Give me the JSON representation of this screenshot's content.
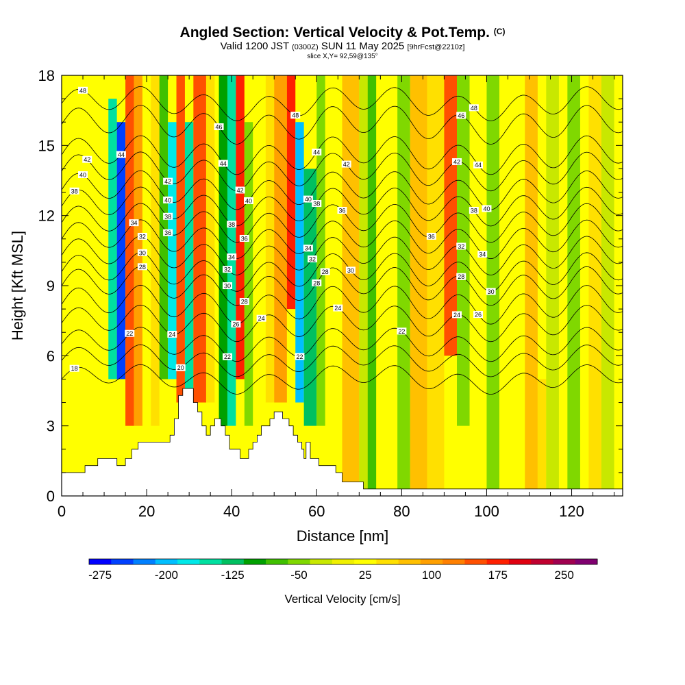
{
  "header": {
    "title": "Angled Section: Vertical Velocity & Pot.Temp.",
    "title_tag": "(C)",
    "valid_prefix": "Valid 1200 JST",
    "valid_utc": "(0300Z)",
    "valid_date": "SUN 11 May 2025",
    "forecast": "[9hrFcst@2210z]",
    "slice": "slice X,Y= 92,59@135°"
  },
  "chart_data": {
    "type": "heatmap",
    "xlabel": "Distance [nm]",
    "ylabel": "Height [Kft MSL]",
    "xlim": [
      0,
      132
    ],
    "ylim": [
      0,
      18
    ],
    "x_ticks": [
      0,
      20,
      40,
      60,
      80,
      100,
      120
    ],
    "y_ticks": [
      0,
      3,
      6,
      9,
      12,
      15,
      18
    ],
    "colorbar": {
      "title": "Vertical Velocity [cm/s]",
      "min": -287.5,
      "max": 287.5,
      "step": 25,
      "tick_values": [
        -275,
        -200,
        -125,
        -50,
        25,
        100,
        175,
        250
      ],
      "tick_labels": [
        "-275",
        "-200",
        "-125",
        "-50",
        "25",
        "100",
        "175",
        "250"
      ],
      "colors": [
        "#0000ff",
        "#0040ff",
        "#0080ff",
        "#00bfff",
        "#00e8e8",
        "#00e0a0",
        "#00c060",
        "#00a000",
        "#40c000",
        "#80d800",
        "#c8e800",
        "#f0f000",
        "#ffff00",
        "#ffe000",
        "#ffc000",
        "#ffa000",
        "#ff8000",
        "#ff5000",
        "#ff2000",
        "#e00010",
        "#c00030",
        "#a00050",
        "#800070"
      ]
    },
    "vertical_velocity_cells": [
      {
        "x": [
          9,
          11
        ],
        "y": [
          3,
          18
        ],
        "value": 25
      },
      {
        "x": [
          11,
          13
        ],
        "y": [
          5,
          17
        ],
        "value": -150
      },
      {
        "x": [
          13,
          15
        ],
        "y": [
          5,
          16
        ],
        "value": -250
      },
      {
        "x": [
          15,
          17
        ],
        "y": [
          3,
          18
        ],
        "value": 160
      },
      {
        "x": [
          17,
          19
        ],
        "y": [
          3,
          18
        ],
        "value": 100
      },
      {
        "x": [
          21,
          23
        ],
        "y": [
          3,
          18
        ],
        "value": 50
      },
      {
        "x": [
          23,
          25
        ],
        "y": [
          5,
          18
        ],
        "value": -75
      },
      {
        "x": [
          25,
          27
        ],
        "y": [
          5,
          16
        ],
        "value": -175
      },
      {
        "x": [
          27,
          29
        ],
        "y": [
          4,
          18
        ],
        "value": 160
      },
      {
        "x": [
          29,
          31
        ],
        "y": [
          4,
          16
        ],
        "value": -150
      },
      {
        "x": [
          31,
          34
        ],
        "y": [
          4,
          18
        ],
        "value": 150
      },
      {
        "x": [
          34,
          36
        ],
        "y": [
          4,
          18
        ],
        "value": 60
      },
      {
        "x": [
          37,
          39
        ],
        "y": [
          3,
          18
        ],
        "value": -100
      },
      {
        "x": [
          39,
          41
        ],
        "y": [
          3,
          18
        ],
        "value": -150
      },
      {
        "x": [
          41,
          43
        ],
        "y": [
          5,
          18
        ],
        "value": 175
      },
      {
        "x": [
          43,
          45
        ],
        "y": [
          3,
          16
        ],
        "value": -50
      },
      {
        "x": [
          48,
          50
        ],
        "y": [
          4,
          18
        ],
        "value": 60
      },
      {
        "x": [
          50,
          53
        ],
        "y": [
          4,
          18
        ],
        "value": 100
      },
      {
        "x": [
          53,
          55
        ],
        "y": [
          8,
          18
        ],
        "value": 175
      },
      {
        "x": [
          55,
          57
        ],
        "y": [
          4,
          16
        ],
        "value": -200
      },
      {
        "x": [
          57,
          60
        ],
        "y": [
          3,
          14
        ],
        "value": -125
      },
      {
        "x": [
          60,
          62
        ],
        "y": [
          3,
          18
        ],
        "value": -50
      },
      {
        "x": [
          66,
          70
        ],
        "y": [
          0.3,
          18
        ],
        "value": 75
      },
      {
        "x": [
          70,
          72
        ],
        "y": [
          0.3,
          18
        ],
        "value": -25
      },
      {
        "x": [
          72,
          74
        ],
        "y": [
          0.3,
          18
        ],
        "value": -75
      },
      {
        "x": [
          79,
          82
        ],
        "y": [
          0.3,
          18
        ],
        "value": -50
      },
      {
        "x": [
          82,
          86
        ],
        "y": [
          0.3,
          18
        ],
        "value": 75
      },
      {
        "x": [
          86,
          90
        ],
        "y": [
          0.3,
          18
        ],
        "value": 50
      },
      {
        "x": [
          90,
          93
        ],
        "y": [
          6,
          18
        ],
        "value": 150
      },
      {
        "x": [
          93,
          96
        ],
        "y": [
          3,
          18
        ],
        "value": -50
      },
      {
        "x": [
          96,
          99
        ],
        "y": [
          0.3,
          18
        ],
        "value": 25
      },
      {
        "x": [
          100,
          103
        ],
        "y": [
          0.3,
          18
        ],
        "value": -50
      },
      {
        "x": [
          103,
          106
        ],
        "y": [
          0.3,
          18
        ],
        "value": 25
      },
      {
        "x": [
          109,
          112
        ],
        "y": [
          0.3,
          18
        ],
        "value": 75
      },
      {
        "x": [
          112,
          114
        ],
        "y": [
          0.3,
          5
        ],
        "value": 50
      },
      {
        "x": [
          114,
          117
        ],
        "y": [
          0.3,
          18
        ],
        "value": -25
      },
      {
        "x": [
          119,
          122
        ],
        "y": [
          0.3,
          18
        ],
        "value": -50
      },
      {
        "x": [
          124,
          127
        ],
        "y": [
          0.3,
          18
        ],
        "value": 50
      },
      {
        "x": [
          127,
          130
        ],
        "y": [
          0.3,
          18
        ],
        "value": -25
      }
    ],
    "terrain": [
      {
        "x": 0,
        "y": 1
      },
      {
        "x": 5.5,
        "y": 1
      },
      {
        "x": 5.5,
        "y": 1.3
      },
      {
        "x": 8.5,
        "y": 1.3
      },
      {
        "x": 8.5,
        "y": 1.6
      },
      {
        "x": 13,
        "y": 1.6
      },
      {
        "x": 13,
        "y": 1.3
      },
      {
        "x": 15,
        "y": 1.3
      },
      {
        "x": 15,
        "y": 1.6
      },
      {
        "x": 16.5,
        "y": 1.6
      },
      {
        "x": 16.5,
        "y": 2
      },
      {
        "x": 18,
        "y": 2
      },
      {
        "x": 18,
        "y": 2.3
      },
      {
        "x": 25.5,
        "y": 2.3
      },
      {
        "x": 25.5,
        "y": 2.6
      },
      {
        "x": 26.5,
        "y": 2.6
      },
      {
        "x": 26.5,
        "y": 3.3
      },
      {
        "x": 27.5,
        "y": 3.3
      },
      {
        "x": 27.5,
        "y": 4.3
      },
      {
        "x": 28.5,
        "y": 4.3
      },
      {
        "x": 28.5,
        "y": 4.6
      },
      {
        "x": 31,
        "y": 4.6
      },
      {
        "x": 31,
        "y": 4
      },
      {
        "x": 32,
        "y": 4
      },
      {
        "x": 32,
        "y": 3.6
      },
      {
        "x": 33,
        "y": 3.6
      },
      {
        "x": 33,
        "y": 3
      },
      {
        "x": 34,
        "y": 3
      },
      {
        "x": 34,
        "y": 2.6
      },
      {
        "x": 35,
        "y": 2.6
      },
      {
        "x": 35,
        "y": 3
      },
      {
        "x": 36,
        "y": 3
      },
      {
        "x": 36,
        "y": 3.3
      },
      {
        "x": 37.5,
        "y": 3.3
      },
      {
        "x": 37.5,
        "y": 3
      },
      {
        "x": 38.5,
        "y": 3
      },
      {
        "x": 38.5,
        "y": 2.6
      },
      {
        "x": 39.5,
        "y": 2.6
      },
      {
        "x": 39.5,
        "y": 2
      },
      {
        "x": 42,
        "y": 2
      },
      {
        "x": 42,
        "y": 1.6
      },
      {
        "x": 44,
        "y": 1.6
      },
      {
        "x": 44,
        "y": 2
      },
      {
        "x": 45,
        "y": 2
      },
      {
        "x": 45,
        "y": 2.3
      },
      {
        "x": 46,
        "y": 2.3
      },
      {
        "x": 46,
        "y": 2.6
      },
      {
        "x": 47,
        "y": 2.6
      },
      {
        "x": 47,
        "y": 3
      },
      {
        "x": 49,
        "y": 3
      },
      {
        "x": 49,
        "y": 3.3
      },
      {
        "x": 50,
        "y": 3.3
      },
      {
        "x": 50,
        "y": 3.6
      },
      {
        "x": 52,
        "y": 3.6
      },
      {
        "x": 52,
        "y": 3.3
      },
      {
        "x": 53.5,
        "y": 3.3
      },
      {
        "x": 53.5,
        "y": 3
      },
      {
        "x": 54.5,
        "y": 3
      },
      {
        "x": 54.5,
        "y": 2.6
      },
      {
        "x": 55.5,
        "y": 2.6
      },
      {
        "x": 55.5,
        "y": 2.3
      },
      {
        "x": 56.5,
        "y": 2.3
      },
      {
        "x": 56.5,
        "y": 2
      },
      {
        "x": 57,
        "y": 2
      },
      {
        "x": 57,
        "y": 1.6
      },
      {
        "x": 57.5,
        "y": 1.6
      },
      {
        "x": 57.5,
        "y": 2.3
      },
      {
        "x": 58.5,
        "y": 2.3
      },
      {
        "x": 58.5,
        "y": 1.6
      },
      {
        "x": 60.5,
        "y": 1.6
      },
      {
        "x": 60.5,
        "y": 1.3
      },
      {
        "x": 64.5,
        "y": 1.3
      },
      {
        "x": 64.5,
        "y": 1
      },
      {
        "x": 66,
        "y": 1
      },
      {
        "x": 66,
        "y": 0.6
      },
      {
        "x": 71,
        "y": 0.6
      },
      {
        "x": 71,
        "y": 0.3
      },
      {
        "x": 132,
        "y": 0.3
      }
    ],
    "isentropes": [
      {
        "label": "18",
        "y0": 5.0,
        "amp": 0.4,
        "labels_at": [
          3
        ]
      },
      {
        "label": "20",
        "y0": 5.8,
        "amp": 0.45,
        "labels_at": [
          28
        ]
      },
      {
        "label": "22",
        "y0": 6.5,
        "amp": 0.5,
        "labels_at": [
          16,
          39,
          56,
          80
        ]
      },
      {
        "label": "24",
        "y0": 7.4,
        "amp": 0.55,
        "labels_at": [
          26,
          47,
          65,
          93
        ]
      },
      {
        "label": "26",
        "y0": 8.2,
        "amp": 0.6,
        "labels_at": [
          41,
          98
        ]
      },
      {
        "label": "28",
        "y0": 9.0,
        "amp": 0.6,
        "labels_at": [
          19,
          43,
          60,
          62,
          94
        ]
      },
      {
        "label": "30",
        "y0": 9.6,
        "amp": 0.6,
        "labels_at": [
          19,
          39,
          68,
          101
        ]
      },
      {
        "label": "32",
        "y0": 10.3,
        "amp": 0.6,
        "labels_at": [
          19,
          39,
          59,
          94
        ]
      },
      {
        "label": "34",
        "y0": 11.0,
        "amp": 0.6,
        "labels_at": [
          17,
          40,
          58,
          99
        ]
      },
      {
        "label": "36",
        "y0": 11.7,
        "amp": 0.6,
        "labels_at": [
          25,
          43,
          66,
          87
        ]
      },
      {
        "label": "38",
        "y0": 12.4,
        "amp": 0.6,
        "labels_at": [
          3,
          25,
          40,
          60,
          97
        ]
      },
      {
        "label": "40",
        "y0": 13.1,
        "amp": 0.6,
        "labels_at": [
          5,
          25,
          44,
          58,
          100
        ]
      },
      {
        "label": "42",
        "y0": 13.9,
        "amp": 0.6,
        "labels_at": [
          6,
          25,
          42,
          67,
          93
        ]
      },
      {
        "label": "44",
        "y0": 14.6,
        "amp": 0.6,
        "labels_at": [
          14,
          38,
          60,
          98
        ]
      },
      {
        "label": "46",
        "y0": 15.9,
        "amp": 0.6,
        "labels_at": [
          37,
          94
        ]
      },
      {
        "label": "48",
        "y0": 16.8,
        "amp": 0.5,
        "labels_at": [
          5,
          55,
          97
        ]
      }
    ]
  }
}
